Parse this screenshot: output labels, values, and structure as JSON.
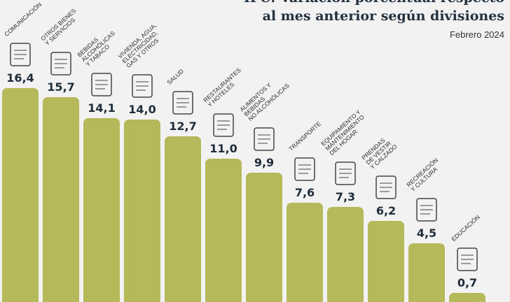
{
  "chart_data": {
    "type": "bar",
    "title": "IPC: Variación porcentual respecto",
    "title_line2": "al mes anterior según divisiones",
    "subtitle": "Febrero 2024",
    "xlabel": "",
    "ylabel": "",
    "ylim": [
      0,
      16.4
    ],
    "grid": false,
    "bar_color": "#b5b95a",
    "categories": [
      [
        "Comunicación"
      ],
      [
        "Otros bienes",
        "y servicios"
      ],
      [
        "Bebidas",
        "alcohólicas",
        "y tabaco"
      ],
      [
        "Vivienda, agua,",
        "electricidad,",
        "gas y otros"
      ],
      [
        "Salud"
      ],
      [
        "Restaurantes",
        "y hoteles"
      ],
      [
        "Alimentos y",
        "bebidas",
        "no alcohólicas"
      ],
      [
        "Transporte"
      ],
      [
        "Equipamiento y",
        "mantenimiento",
        "del hogar"
      ],
      [
        "Prendas",
        "de vestir",
        "y calzado"
      ],
      [
        "Recreación",
        "y cultura"
      ],
      [
        "Educación"
      ]
    ],
    "values": [
      16.4,
      15.7,
      14.1,
      14.0,
      12.7,
      11.0,
      9.9,
      7.6,
      7.3,
      6.2,
      4.5,
      0.7
    ],
    "value_labels": [
      "16,4",
      "15,7",
      "14,1",
      "14,0",
      "12,7",
      "11,0",
      "9,9",
      "7,6",
      "7,3",
      "6,2",
      "4,5",
      "0,7"
    ],
    "icons": [
      "phone-icon",
      "scissors-ribbon-icon",
      "bottle-glass-icon",
      "house-document-icon",
      "hospital-icon",
      "plate-cutlery-icon",
      "food-basket-icon",
      "bus-icon",
      "microwave-icon",
      "clothes-icon",
      "camera-icon",
      "diploma-icon"
    ]
  }
}
